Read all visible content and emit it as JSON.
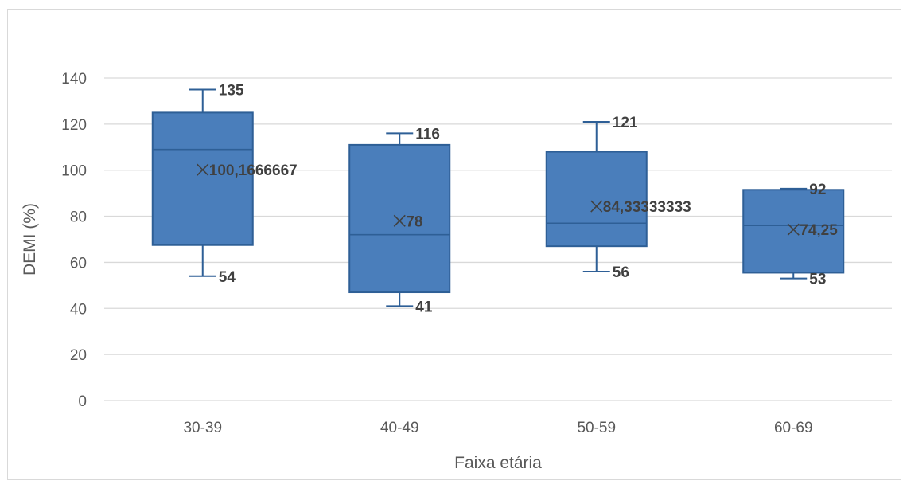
{
  "chart_data": {
    "type": "box",
    "title": "",
    "xlabel": "Faixa etária",
    "ylabel": "DEMI (%)",
    "ylim": [
      0,
      140
    ],
    "yticks": [
      0,
      20,
      40,
      60,
      80,
      100,
      120,
      140
    ],
    "grid": true,
    "legend": "none",
    "box_color": "#4a7ebb",
    "box_edge_color": "#2e5f96",
    "categories": [
      "30-39",
      "40-49",
      "50-59",
      "60-69"
    ],
    "boxes": [
      {
        "category": "30-39",
        "min": 54,
        "q1": 67.5,
        "median": 109,
        "q3": 125,
        "max": 135,
        "mean": 100.1666667,
        "labels": {
          "max": "135",
          "mean": "100,1666667",
          "min": "54"
        }
      },
      {
        "category": "40-49",
        "min": 41,
        "q1": 47,
        "median": 72,
        "q3": 111,
        "max": 116,
        "mean": 78,
        "labels": {
          "max": "116",
          "mean": "78",
          "min": "41"
        }
      },
      {
        "category": "50-59",
        "min": 56,
        "q1": 67,
        "median": 77,
        "q3": 108,
        "max": 121,
        "mean": 84.33333333,
        "labels": {
          "max": "121",
          "mean": "84,33333333",
          "min": "56"
        }
      },
      {
        "category": "60-69",
        "min": 53,
        "q1": 55.5,
        "median": 76,
        "q3": 91.5,
        "max": 92,
        "mean": 74.25,
        "labels": {
          "max": "92",
          "mean": "74,25",
          "min": "53"
        }
      }
    ]
  }
}
